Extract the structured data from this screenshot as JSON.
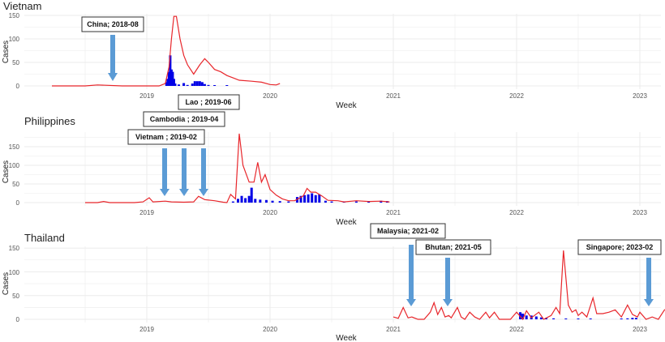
{
  "chart_data": [
    {
      "type": "line+bar",
      "title": "Vietnam",
      "xlabel": "Week",
      "ylabel": "Cases",
      "yticks": [
        0,
        50,
        100,
        150
      ],
      "ylim": [
        0,
        150
      ],
      "xticks": [
        "2019",
        "2020",
        "2021",
        "2022",
        "2023"
      ],
      "grid": true,
      "series": [
        {
          "name": "line",
          "color": "#e8262b",
          "points": [
            [
              2018.23,
              0
            ],
            [
              2018.5,
              0
            ],
            [
              2018.6,
              2
            ],
            [
              2018.8,
              0
            ],
            [
              2019.1,
              0
            ],
            [
              2019.15,
              5
            ],
            [
              2019.18,
              40
            ],
            [
              2019.2,
              100
            ],
            [
              2019.22,
              148
            ],
            [
              2019.24,
              148
            ],
            [
              2019.27,
              100
            ],
            [
              2019.3,
              65
            ],
            [
              2019.33,
              45
            ],
            [
              2019.38,
              25
            ],
            [
              2019.43,
              45
            ],
            [
              2019.47,
              58
            ],
            [
              2019.5,
              50
            ],
            [
              2019.55,
              35
            ],
            [
              2019.6,
              30
            ],
            [
              2019.65,
              22
            ],
            [
              2019.7,
              17
            ],
            [
              2019.75,
              12
            ],
            [
              2019.85,
              10
            ],
            [
              2019.93,
              8
            ],
            [
              2020.0,
              3
            ],
            [
              2020.05,
              2
            ],
            [
              2020.08,
              5
            ]
          ]
        },
        {
          "name": "bars",
          "color": "#0000e6",
          "points": [
            [
              2019.16,
              8
            ],
            [
              2019.17,
              15
            ],
            [
              2019.18,
              30
            ],
            [
              2019.19,
              65
            ],
            [
              2019.2,
              35
            ],
            [
              2019.21,
              30
            ],
            [
              2019.22,
              15
            ],
            [
              2019.23,
              5
            ],
            [
              2019.26,
              3
            ],
            [
              2019.3,
              6
            ],
            [
              2019.33,
              2
            ],
            [
              2019.37,
              5
            ],
            [
              2019.39,
              10
            ],
            [
              2019.41,
              10
            ],
            [
              2019.43,
              10
            ],
            [
              2019.45,
              8
            ],
            [
              2019.47,
              4
            ],
            [
              2019.5,
              2
            ],
            [
              2019.55,
              1
            ],
            [
              2019.65,
              1
            ]
          ]
        }
      ],
      "annotations": [
        {
          "label": "China; 2018-08",
          "arrow_x": 2018.62
        }
      ]
    },
    {
      "type": "line+bar",
      "title": "Philippines",
      "xlabel": "Week",
      "ylabel": "Cases",
      "yticks": [
        0,
        50,
        100,
        150
      ],
      "ylim": [
        0,
        190
      ],
      "xticks": [
        "2019",
        "2020",
        "2021",
        "2022",
        "2023"
      ],
      "grid": true,
      "series": [
        {
          "name": "line",
          "color": "#e8262b",
          "points": [
            [
              2018.5,
              0
            ],
            [
              2018.6,
              0
            ],
            [
              2018.65,
              3
            ],
            [
              2018.7,
              0
            ],
            [
              2018.9,
              0
            ],
            [
              2018.97,
              2
            ],
            [
              2019.02,
              13
            ],
            [
              2019.05,
              2
            ],
            [
              2019.15,
              4
            ],
            [
              2019.2,
              2
            ],
            [
              2019.3,
              1
            ],
            [
              2019.38,
              2
            ],
            [
              2019.42,
              17
            ],
            [
              2019.47,
              8
            ],
            [
              2019.55,
              5
            ],
            [
              2019.62,
              1
            ],
            [
              2019.65,
              0
            ],
            [
              2019.68,
              22
            ],
            [
              2019.72,
              10
            ],
            [
              2019.75,
              185
            ],
            [
              2019.78,
              100
            ],
            [
              2019.83,
              55
            ],
            [
              2019.87,
              55
            ],
            [
              2019.9,
              108
            ],
            [
              2019.93,
              55
            ],
            [
              2019.96,
              75
            ],
            [
              2020.0,
              35
            ],
            [
              2020.05,
              20
            ],
            [
              2020.1,
              10
            ],
            [
              2020.15,
              5
            ],
            [
              2020.2,
              5
            ],
            [
              2020.27,
              18
            ],
            [
              2020.3,
              38
            ],
            [
              2020.33,
              28
            ],
            [
              2020.37,
              28
            ],
            [
              2020.42,
              18
            ],
            [
              2020.47,
              6
            ],
            [
              2020.55,
              5
            ],
            [
              2020.6,
              2
            ],
            [
              2020.7,
              5
            ],
            [
              2020.8,
              3
            ],
            [
              2020.9,
              4
            ],
            [
              2020.97,
              2
            ]
          ]
        },
        {
          "name": "bars",
          "color": "#0000e6",
          "points": [
            [
              2019.7,
              3
            ],
            [
              2019.74,
              10
            ],
            [
              2019.77,
              18
            ],
            [
              2019.8,
              12
            ],
            [
              2019.83,
              18
            ],
            [
              2019.85,
              40
            ],
            [
              2019.88,
              10
            ],
            [
              2019.92,
              8
            ],
            [
              2019.97,
              7
            ],
            [
              2020.02,
              5
            ],
            [
              2020.08,
              4
            ],
            [
              2020.15,
              3
            ],
            [
              2020.22,
              15
            ],
            [
              2020.25,
              18
            ],
            [
              2020.28,
              20
            ],
            [
              2020.31,
              22
            ],
            [
              2020.34,
              25
            ],
            [
              2020.37,
              20
            ],
            [
              2020.4,
              22
            ],
            [
              2020.45,
              5
            ],
            [
              2020.5,
              3
            ],
            [
              2020.6,
              3
            ],
            [
              2020.7,
              3
            ],
            [
              2020.8,
              3
            ],
            [
              2020.9,
              5
            ],
            [
              2020.95,
              4
            ]
          ]
        }
      ],
      "annotations": [
        {
          "label": "Vietnam ; 2019-02",
          "arrow_x": 2019.14
        },
        {
          "label": "Cambodia ; 2019-04",
          "arrow_x": 2019.3
        },
        {
          "label": "Lao ; 2019-06",
          "arrow_x": 2019.46
        }
      ]
    },
    {
      "type": "line+bar",
      "title": "Thailand",
      "xlabel": "Week",
      "ylabel": "Cases",
      "yticks": [
        0,
        50,
        100,
        150
      ],
      "ylim": [
        0,
        150
      ],
      "xticks": [
        "2019",
        "2020",
        "2021",
        "2022",
        "2023"
      ],
      "grid": true,
      "series": [
        {
          "name": "line",
          "color": "#e8262b",
          "points": [
            [
              2021.0,
              5
            ],
            [
              2021.04,
              2
            ],
            [
              2021.08,
              25
            ],
            [
              2021.12,
              3
            ],
            [
              2021.15,
              5
            ],
            [
              2021.2,
              0
            ],
            [
              2021.25,
              0
            ],
            [
              2021.3,
              15
            ],
            [
              2021.33,
              35
            ],
            [
              2021.36,
              10
            ],
            [
              2021.39,
              25
            ],
            [
              2021.42,
              5
            ],
            [
              2021.45,
              8
            ],
            [
              2021.47,
              3
            ],
            [
              2021.52,
              25
            ],
            [
              2021.55,
              5
            ],
            [
              2021.58,
              0
            ],
            [
              2021.62,
              15
            ],
            [
              2021.66,
              5
            ],
            [
              2021.7,
              0
            ],
            [
              2021.75,
              15
            ],
            [
              2021.78,
              3
            ],
            [
              2021.82,
              15
            ],
            [
              2021.86,
              0
            ],
            [
              2021.9,
              0
            ],
            [
              2021.95,
              0
            ],
            [
              2022.0,
              15
            ],
            [
              2022.05,
              0
            ],
            [
              2022.08,
              18
            ],
            [
              2022.12,
              3
            ],
            [
              2022.18,
              15
            ],
            [
              2022.22,
              0
            ],
            [
              2022.28,
              8
            ],
            [
              2022.32,
              25
            ],
            [
              2022.35,
              12
            ],
            [
              2022.38,
              145
            ],
            [
              2022.42,
              30
            ],
            [
              2022.45,
              15
            ],
            [
              2022.48,
              20
            ],
            [
              2022.5,
              8
            ],
            [
              2022.53,
              15
            ],
            [
              2022.57,
              5
            ],
            [
              2022.62,
              45
            ],
            [
              2022.65,
              12
            ],
            [
              2022.7,
              12
            ],
            [
              2022.75,
              15
            ],
            [
              2022.8,
              20
            ],
            [
              2022.85,
              5
            ],
            [
              2022.9,
              30
            ],
            [
              2022.94,
              10
            ],
            [
              2022.98,
              5
            ],
            [
              2023.0,
              15
            ],
            [
              2023.05,
              0
            ],
            [
              2023.1,
              5
            ],
            [
              2023.15,
              0
            ],
            [
              2023.2,
              20
            ],
            [
              2023.25,
              22
            ],
            [
              2023.3,
              5
            ],
            [
              2023.38,
              5
            ],
            [
              2023.42,
              25
            ],
            [
              2023.48,
              10
            ],
            [
              2023.53,
              5
            ],
            [
              2023.57,
              12
            ],
            [
              2023.62,
              10
            ],
            [
              2023.68,
              8
            ],
            [
              2023.72,
              0
            ]
          ]
        },
        {
          "name": "bars",
          "color": "#0000e6",
          "points": [
            [
              2022.03,
              15
            ],
            [
              2022.05,
              12
            ],
            [
              2022.08,
              8
            ],
            [
              2022.12,
              8
            ],
            [
              2022.16,
              6
            ],
            [
              2022.2,
              4
            ],
            [
              2022.24,
              3
            ],
            [
              2022.3,
              2
            ],
            [
              2022.4,
              1
            ],
            [
              2022.5,
              1
            ],
            [
              2022.6,
              1
            ],
            [
              2022.85,
              1
            ],
            [
              2022.9,
              2
            ],
            [
              2022.94,
              3
            ],
            [
              2022.97,
              3
            ]
          ]
        }
      ],
      "annotations": [
        {
          "label": "Malaysia; 2021-02",
          "arrow_x": 2021.14
        },
        {
          "label": "Bhutan; 2021-05",
          "arrow_x": 2021.44
        },
        {
          "label": "Singapore; 2023-02",
          "arrow_x": 2023.08
        }
      ]
    }
  ],
  "panels": {
    "vietnam": {
      "title": "Vietnam",
      "ylabel": "Cases",
      "xlabel": "Week",
      "ann": [
        "China; 2018-08"
      ]
    },
    "philippines": {
      "title": "Philippines",
      "ylabel": "Cases",
      "xlabel": "Week",
      "ann": [
        "Vietnam ; 2019-02",
        "Cambodia ; 2019-04",
        "Lao ; 2019-06"
      ]
    },
    "thailand": {
      "title": "Thailand",
      "ylabel": "Cases",
      "xlabel": "Week",
      "ann": [
        "Malaysia; 2021-02",
        "Bhutan; 2021-05",
        "Singapore; 2023-02"
      ]
    }
  },
  "yticks": [
    "0",
    "50",
    "100",
    "150"
  ],
  "xticks": [
    "2019",
    "2020",
    "2021",
    "2022",
    "2023"
  ],
  "colors": {
    "line": "#e8262b",
    "bars": "#0000e6",
    "arrow": "#5b9bd5",
    "grid": "#ebebeb"
  }
}
